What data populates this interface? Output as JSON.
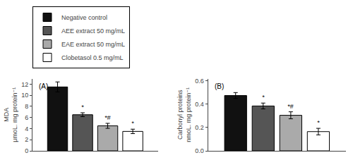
{
  "chart_data": [
    {
      "type": "bar",
      "title": "(A)",
      "ylabel": "MDA\nμmoL. mg protein⁻¹",
      "categories": [
        null
      ],
      "series": [
        {
          "name": "Negative control",
          "color": "#111111",
          "values": [
            11.5
          ],
          "errors": [
            0.9
          ]
        },
        {
          "name": "AEE extract 50 mg/mL",
          "color": "#555555",
          "values": [
            6.5
          ],
          "errors": [
            0.35
          ],
          "annotations": [
            "*"
          ]
        },
        {
          "name": "EAE extract 50 mg/mL",
          "color": "#aaaaaa",
          "values": [
            4.5
          ],
          "errors": [
            0.45
          ],
          "annotations": [
            "*#"
          ]
        },
        {
          "name": "Clobetasol 0.5 mg/mL",
          "color": "#ffffff",
          "values": [
            3.5
          ],
          "errors": [
            0.4
          ],
          "annotations": [
            "*"
          ]
        }
      ],
      "ylim": [
        0,
        13
      ],
      "yticks": [
        0,
        2,
        4,
        6,
        8,
        10,
        12
      ],
      "grid": false,
      "legend": "upper left",
      "tick_labels": "y"
    },
    {
      "type": "bar",
      "title": "(B)",
      "ylabel": "Carbonyl proteins\nnmoL. mg protein⁻¹",
      "categories": [
        null
      ],
      "series": [
        {
          "name": "Negative control",
          "color": "#111111",
          "values": [
            0.475
          ],
          "errors": [
            0.025
          ]
        },
        {
          "name": "AEE extract 50 mg/mL",
          "color": "#555555",
          "values": [
            0.385
          ],
          "errors": [
            0.025
          ],
          "annotations": [
            "*"
          ]
        },
        {
          "name": "EAE extract 50 mg/mL",
          "color": "#aaaaaa",
          "values": [
            0.305
          ],
          "errors": [
            0.03
          ],
          "annotations": [
            "*#"
          ]
        },
        {
          "name": "Clobetasol 0.5 mg/mL",
          "color": "#ffffff",
          "values": [
            0.165
          ],
          "errors": [
            0.028
          ],
          "annotations": [
            "*"
          ]
        }
      ],
      "ylim": [
        0.0,
        0.62
      ],
      "yticks": [
        {
          "value": 0.0,
          "label": "0.0"
        },
        0.2,
        0.4,
        0.6
      ],
      "grid": false,
      "tick_labels": "y"
    }
  ]
}
